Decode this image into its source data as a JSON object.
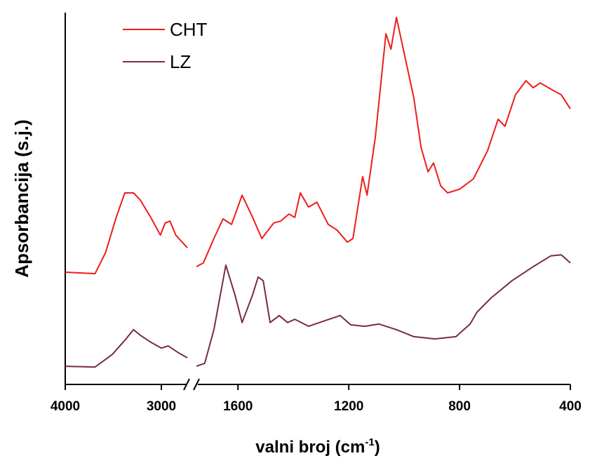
{
  "chart_data": {
    "type": "line",
    "ylabel": "Apsorbancija (s.j.)",
    "xlabel": {
      "text": "valni broj (cm",
      "superscript": "-1",
      "suffix": ")"
    },
    "ylim": [
      0,
      100
    ],
    "legend": "upper left",
    "x_segments": [
      {
        "xlim": [
          4000,
          2730
        ],
        "xticks": [
          4000,
          3000
        ]
      },
      {
        "xlim": [
          1750,
          400
        ],
        "xticks": [
          1600,
          1200,
          800,
          400
        ]
      }
    ],
    "series": [
      {
        "name": "CHT",
        "color": "#ee1c1c",
        "segments": [
          {
            "x": [
              4000,
              3690,
              3580,
              3470,
              3380,
              3290,
              3220,
              3110,
              3010,
              2960,
              2910,
              2850,
              2730
            ],
            "values": [
              30.3,
              29.9,
              35.6,
              45.1,
              51.7,
              51.7,
              49.8,
              45.1,
              40.3,
              43.6,
              44.1,
              40.3,
              36.9
            ]
          },
          {
            "x": [
              1750,
              1725,
              1687,
              1654,
              1623,
              1585,
              1547,
              1514,
              1471,
              1446,
              1416,
              1395,
              1375,
              1345,
              1315,
              1274,
              1243,
              1205,
              1185,
              1150,
              1134,
              1104,
              1066,
              1048,
              1028,
              995,
              965,
              939,
              914,
              894,
              868,
              843,
              800,
              750,
              699,
              661,
              636,
              598,
              560,
              534,
              509,
              458,
              433,
              400
            ],
            "values": [
              31.8,
              32.8,
              39.4,
              44.7,
              43.2,
              51.1,
              45.1,
              39.4,
              43.6,
              44.1,
              46.0,
              45.1,
              51.7,
              47.9,
              49.2,
              43.2,
              41.7,
              38.4,
              39.4,
              56.1,
              51.1,
              66.9,
              94.7,
              90.5,
              99.1,
              87.7,
              77.3,
              64.0,
              57.4,
              59.8,
              53.6,
              51.7,
              52.7,
              55.5,
              63.1,
              71.6,
              69.7,
              78.2,
              82.0,
              80.1,
              81.4,
              79.2,
              78.2,
              74.4
            ]
          }
        ]
      },
      {
        "name": "LZ",
        "color": "#772b47",
        "segments": [
          {
            "x": [
              4000,
              3690,
              3510,
              3380,
              3290,
              3220,
              3110,
              3000,
              2930,
              2820,
              2730
            ],
            "values": [
              4.9,
              4.7,
              8.1,
              11.9,
              14.8,
              13.3,
              11.4,
              9.8,
              10.4,
              8.5,
              7.2
            ]
          },
          {
            "x": [
              1750,
              1720,
              1687,
              1644,
              1611,
              1585,
              1547,
              1527,
              1509,
              1484,
              1451,
              1421,
              1395,
              1345,
              1294,
              1231,
              1193,
              1142,
              1091,
              1028,
              965,
              889,
              813,
              762,
              737,
              687,
              611,
              534,
              471,
              433,
              400
            ],
            "values": [
              4.9,
              5.7,
              14.8,
              32.2,
              24.2,
              16.7,
              24.2,
              29.0,
              28.0,
              16.7,
              18.6,
              16.7,
              17.6,
              15.7,
              17.0,
              18.6,
              16.1,
              15.7,
              16.3,
              14.8,
              12.9,
              12.3,
              12.9,
              16.3,
              19.5,
              23.3,
              28.0,
              31.8,
              34.7,
              35.0,
              32.8
            ]
          }
        ]
      }
    ]
  }
}
